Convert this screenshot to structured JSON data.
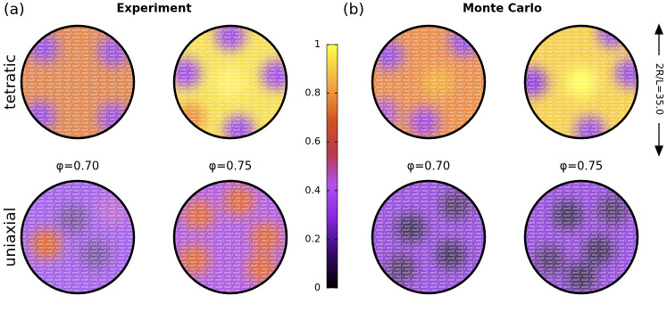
{
  "panels": [
    {
      "label": "(a)",
      "title": "Experiment",
      "phi_labels": [
        "φ=0.70",
        "φ=0.75"
      ]
    },
    {
      "label": "(b)",
      "title": "Monte Carlo",
      "phi_labels": [
        "φ=0.70",
        "φ=0.75"
      ]
    }
  ],
  "row_labels": [
    "tetratic",
    "uniaxial"
  ],
  "side_label": "2R/L=35.0",
  "colorbar": {
    "lim": [
      0,
      1
    ],
    "ticks": [
      0,
      0.2,
      0.4,
      0.6,
      0.8,
      1
    ]
  }
}
